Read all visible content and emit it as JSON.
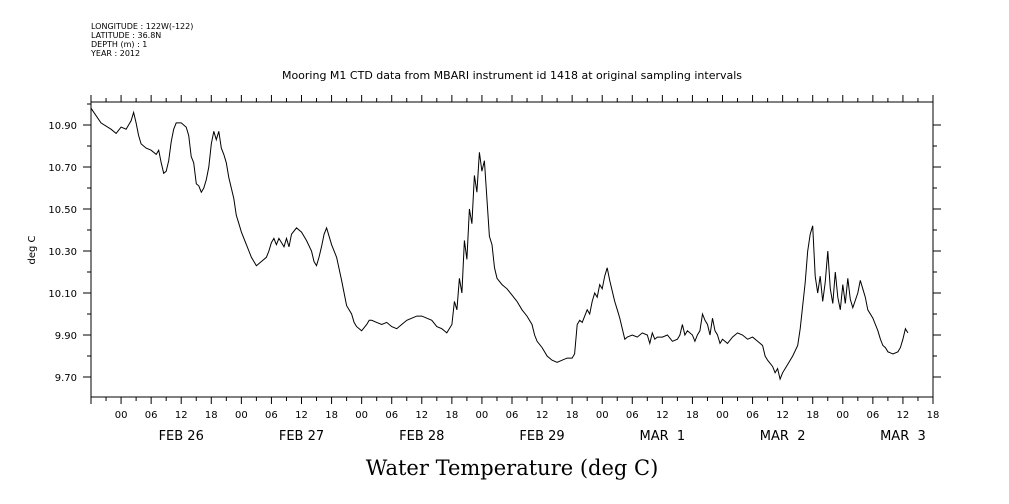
{
  "metadata": {
    "longitude": "LONGITUDE : 122W(-122)",
    "latitude": "LATITUDE : 36.8N",
    "depth": "DEPTH (m) : 1",
    "year": "YEAR : 2012"
  },
  "chart_data": {
    "type": "line",
    "title": "Mooring M1 CTD data from MBARI instrument id 1418 at original sampling intervals",
    "xlabel": "Water Temperature (deg C)",
    "ylabel": "deg C",
    "ylim": [
      9.6,
      11.0
    ],
    "yticks": [
      "9.70",
      "9.90",
      "10.10",
      "10.30",
      "10.50",
      "10.70",
      "10.90"
    ],
    "x_unit": "hours since FEB 25 18:00",
    "xlim": [
      0,
      168
    ],
    "hour_tick_labels": [
      "00",
      "06",
      "12",
      "18",
      "00",
      "06",
      "12",
      "18",
      "00",
      "06",
      "12",
      "18",
      "00",
      "06",
      "12",
      "18",
      "00",
      "06",
      "12",
      "18",
      "00",
      "06",
      "12",
      "18",
      "00",
      "06",
      "12",
      "18"
    ],
    "date_labels": [
      "FEB 26",
      "FEB 27",
      "FEB 28",
      "FEB 29",
      "MAR  1",
      "MAR  2",
      "MAR  3"
    ],
    "grid": false,
    "series": [
      {
        "color": "#000000",
        "points": [
          [
            0,
            10.98
          ],
          [
            2,
            10.91
          ],
          [
            4,
            10.88
          ],
          [
            5,
            10.86
          ],
          [
            6,
            10.89
          ],
          [
            7,
            10.88
          ],
          [
            8,
            10.92
          ],
          [
            8.5,
            10.96
          ],
          [
            9,
            10.91
          ],
          [
            9.5,
            10.85
          ],
          [
            10,
            10.81
          ],
          [
            11,
            10.79
          ],
          [
            12,
            10.78
          ],
          [
            13,
            10.76
          ],
          [
            13.5,
            10.78
          ],
          [
            14,
            10.72
          ],
          [
            14.5,
            10.67
          ],
          [
            15,
            10.68
          ],
          [
            15.5,
            10.73
          ],
          [
            16,
            10.82
          ],
          [
            16.5,
            10.88
          ],
          [
            17,
            10.91
          ],
          [
            18,
            10.91
          ],
          [
            19,
            10.89
          ],
          [
            19.5,
            10.85
          ],
          [
            20,
            10.75
          ],
          [
            20.5,
            10.72
          ],
          [
            21,
            10.62
          ],
          [
            21.5,
            10.61
          ],
          [
            22,
            10.58
          ],
          [
            22.5,
            10.6
          ],
          [
            23,
            10.64
          ],
          [
            23.5,
            10.7
          ],
          [
            24,
            10.81
          ],
          [
            24.5,
            10.87
          ],
          [
            25,
            10.83
          ],
          [
            25.5,
            10.87
          ],
          [
            26,
            10.79
          ],
          [
            26.5,
            10.76
          ],
          [
            27,
            10.72
          ],
          [
            27.5,
            10.65
          ],
          [
            28,
            10.6
          ],
          [
            28.5,
            10.55
          ],
          [
            29,
            10.47
          ],
          [
            29.5,
            10.43
          ],
          [
            30,
            10.39
          ],
          [
            30.5,
            10.36
          ],
          [
            31,
            10.33
          ],
          [
            31.5,
            10.3
          ],
          [
            32,
            10.27
          ],
          [
            32.5,
            10.25
          ],
          [
            33,
            10.23
          ],
          [
            34,
            10.25
          ],
          [
            35,
            10.27
          ],
          [
            35.5,
            10.3
          ],
          [
            36,
            10.34
          ],
          [
            36.5,
            10.36
          ],
          [
            37,
            10.33
          ],
          [
            37.5,
            10.36
          ],
          [
            38,
            10.34
          ],
          [
            38.5,
            10.32
          ],
          [
            39,
            10.36
          ],
          [
            39.5,
            10.32
          ],
          [
            40,
            10.38
          ],
          [
            41,
            10.41
          ],
          [
            42,
            10.39
          ],
          [
            43,
            10.35
          ],
          [
            44,
            10.3
          ],
          [
            44.5,
            10.25
          ],
          [
            45,
            10.23
          ],
          [
            45.5,
            10.27
          ],
          [
            46,
            10.32
          ],
          [
            46.5,
            10.38
          ],
          [
            47,
            10.41
          ],
          [
            47.5,
            10.37
          ],
          [
            48,
            10.33
          ],
          [
            49,
            10.27
          ],
          [
            50,
            10.16
          ],
          [
            50.5,
            10.1
          ],
          [
            51,
            10.04
          ],
          [
            52,
            10.0
          ],
          [
            52.5,
            9.96
          ],
          [
            53,
            9.94
          ],
          [
            54,
            9.92
          ],
          [
            55,
            9.95
          ],
          [
            55.5,
            9.97
          ],
          [
            56,
            9.97
          ],
          [
            57,
            9.96
          ],
          [
            58,
            9.95
          ],
          [
            59,
            9.96
          ],
          [
            60,
            9.94
          ],
          [
            61,
            9.93
          ],
          [
            62,
            9.95
          ],
          [
            63,
            9.97
          ],
          [
            64,
            9.98
          ],
          [
            65,
            9.99
          ],
          [
            66,
            9.99
          ],
          [
            67,
            9.98
          ],
          [
            68,
            9.97
          ],
          [
            69,
            9.94
          ],
          [
            70,
            9.93
          ],
          [
            70.5,
            9.92
          ],
          [
            71,
            9.91
          ],
          [
            72,
            9.95
          ],
          [
            72.5,
            10.06
          ],
          [
            73,
            10.02
          ],
          [
            73.5,
            10.17
          ],
          [
            74,
            10.1
          ],
          [
            74.5,
            10.35
          ],
          [
            75,
            10.26
          ],
          [
            75.5,
            10.5
          ],
          [
            76,
            10.43
          ],
          [
            76.5,
            10.66
          ],
          [
            77,
            10.58
          ],
          [
            77.5,
            10.77
          ],
          [
            78,
            10.68
          ],
          [
            78.5,
            10.73
          ],
          [
            79,
            10.55
          ],
          [
            79.5,
            10.37
          ],
          [
            80,
            10.33
          ],
          [
            80.5,
            10.22
          ],
          [
            81,
            10.17
          ],
          [
            82,
            10.14
          ],
          [
            83,
            10.12
          ],
          [
            84,
            10.09
          ],
          [
            85,
            10.06
          ],
          [
            86,
            10.02
          ],
          [
            87,
            9.99
          ],
          [
            88,
            9.95
          ],
          [
            88.5,
            9.9
          ],
          [
            89,
            9.87
          ],
          [
            90,
            9.84
          ],
          [
            91,
            9.8
          ],
          [
            92,
            9.78
          ],
          [
            93,
            9.77
          ],
          [
            94,
            9.78
          ],
          [
            95,
            9.79
          ],
          [
            96,
            9.79
          ],
          [
            96.5,
            9.81
          ],
          [
            97,
            9.95
          ],
          [
            97.5,
            9.97
          ],
          [
            98,
            9.96
          ],
          [
            99,
            10.02
          ],
          [
            99.5,
            10.0
          ],
          [
            100,
            10.06
          ],
          [
            100.5,
            10.1
          ],
          [
            101,
            10.08
          ],
          [
            101.5,
            10.14
          ],
          [
            102,
            10.12
          ],
          [
            102.5,
            10.18
          ],
          [
            103,
            10.22
          ],
          [
            103.5,
            10.16
          ],
          [
            104,
            10.11
          ],
          [
            104.5,
            10.06
          ],
          [
            105,
            10.02
          ],
          [
            105.5,
            9.98
          ],
          [
            106,
            9.93
          ],
          [
            106.5,
            9.88
          ],
          [
            107,
            9.89
          ],
          [
            108,
            9.9
          ],
          [
            109,
            9.89
          ],
          [
            110,
            9.91
          ],
          [
            111,
            9.9
          ],
          [
            111.5,
            9.86
          ],
          [
            112,
            9.91
          ],
          [
            112.5,
            9.88
          ],
          [
            113,
            9.89
          ],
          [
            114,
            9.89
          ],
          [
            115,
            9.9
          ],
          [
            116,
            9.87
          ],
          [
            117,
            9.88
          ],
          [
            117.5,
            9.9
          ],
          [
            118,
            9.95
          ],
          [
            118.5,
            9.9
          ],
          [
            119,
            9.92
          ],
          [
            120,
            9.9
          ],
          [
            120.5,
            9.87
          ],
          [
            121,
            9.9
          ],
          [
            121.5,
            9.92
          ],
          [
            122,
            10.0
          ],
          [
            122.5,
            9.97
          ],
          [
            123,
            9.95
          ],
          [
            123.5,
            9.9
          ],
          [
            124,
            9.98
          ],
          [
            124.5,
            9.92
          ],
          [
            125,
            9.9
          ],
          [
            125.5,
            9.86
          ],
          [
            126,
            9.88
          ],
          [
            127,
            9.86
          ],
          [
            128,
            9.89
          ],
          [
            129,
            9.91
          ],
          [
            130,
            9.9
          ],
          [
            131,
            9.88
          ],
          [
            132,
            9.89
          ],
          [
            133,
            9.87
          ],
          [
            134,
            9.85
          ],
          [
            134.5,
            9.8
          ],
          [
            135,
            9.78
          ],
          [
            136,
            9.75
          ],
          [
            136.5,
            9.72
          ],
          [
            137,
            9.74
          ],
          [
            137.5,
            9.69
          ],
          [
            138,
            9.72
          ],
          [
            139,
            9.76
          ],
          [
            140,
            9.8
          ],
          [
            141,
            9.85
          ],
          [
            141.5,
            9.93
          ],
          [
            142,
            10.04
          ],
          [
            142.5,
            10.15
          ],
          [
            143,
            10.3
          ],
          [
            143.5,
            10.38
          ],
          [
            144,
            10.42
          ],
          [
            144.5,
            10.18
          ],
          [
            145,
            10.1
          ],
          [
            145.5,
            10.18
          ],
          [
            146,
            10.06
          ],
          [
            146.5,
            10.15
          ],
          [
            147,
            10.3
          ],
          [
            147.5,
            10.12
          ],
          [
            148,
            10.05
          ],
          [
            148.5,
            10.2
          ],
          [
            149,
            10.08
          ],
          [
            149.5,
            10.02
          ],
          [
            150,
            10.14
          ],
          [
            150.5,
            10.05
          ],
          [
            151,
            10.17
          ],
          [
            151.5,
            10.07
          ],
          [
            152,
            10.03
          ],
          [
            153,
            10.1
          ],
          [
            153.5,
            10.16
          ],
          [
            154,
            10.12
          ],
          [
            154.5,
            10.08
          ],
          [
            155,
            10.02
          ],
          [
            156,
            9.98
          ],
          [
            156.5,
            9.95
          ],
          [
            157,
            9.92
          ],
          [
            157.5,
            9.88
          ],
          [
            158,
            9.85
          ],
          [
            158.5,
            9.84
          ],
          [
            159,
            9.82
          ],
          [
            160,
            9.81
          ],
          [
            161,
            9.82
          ],
          [
            161.5,
            9.84
          ],
          [
            162,
            9.88
          ],
          [
            162.5,
            9.93
          ],
          [
            163,
            9.91
          ]
        ]
      }
    ]
  }
}
